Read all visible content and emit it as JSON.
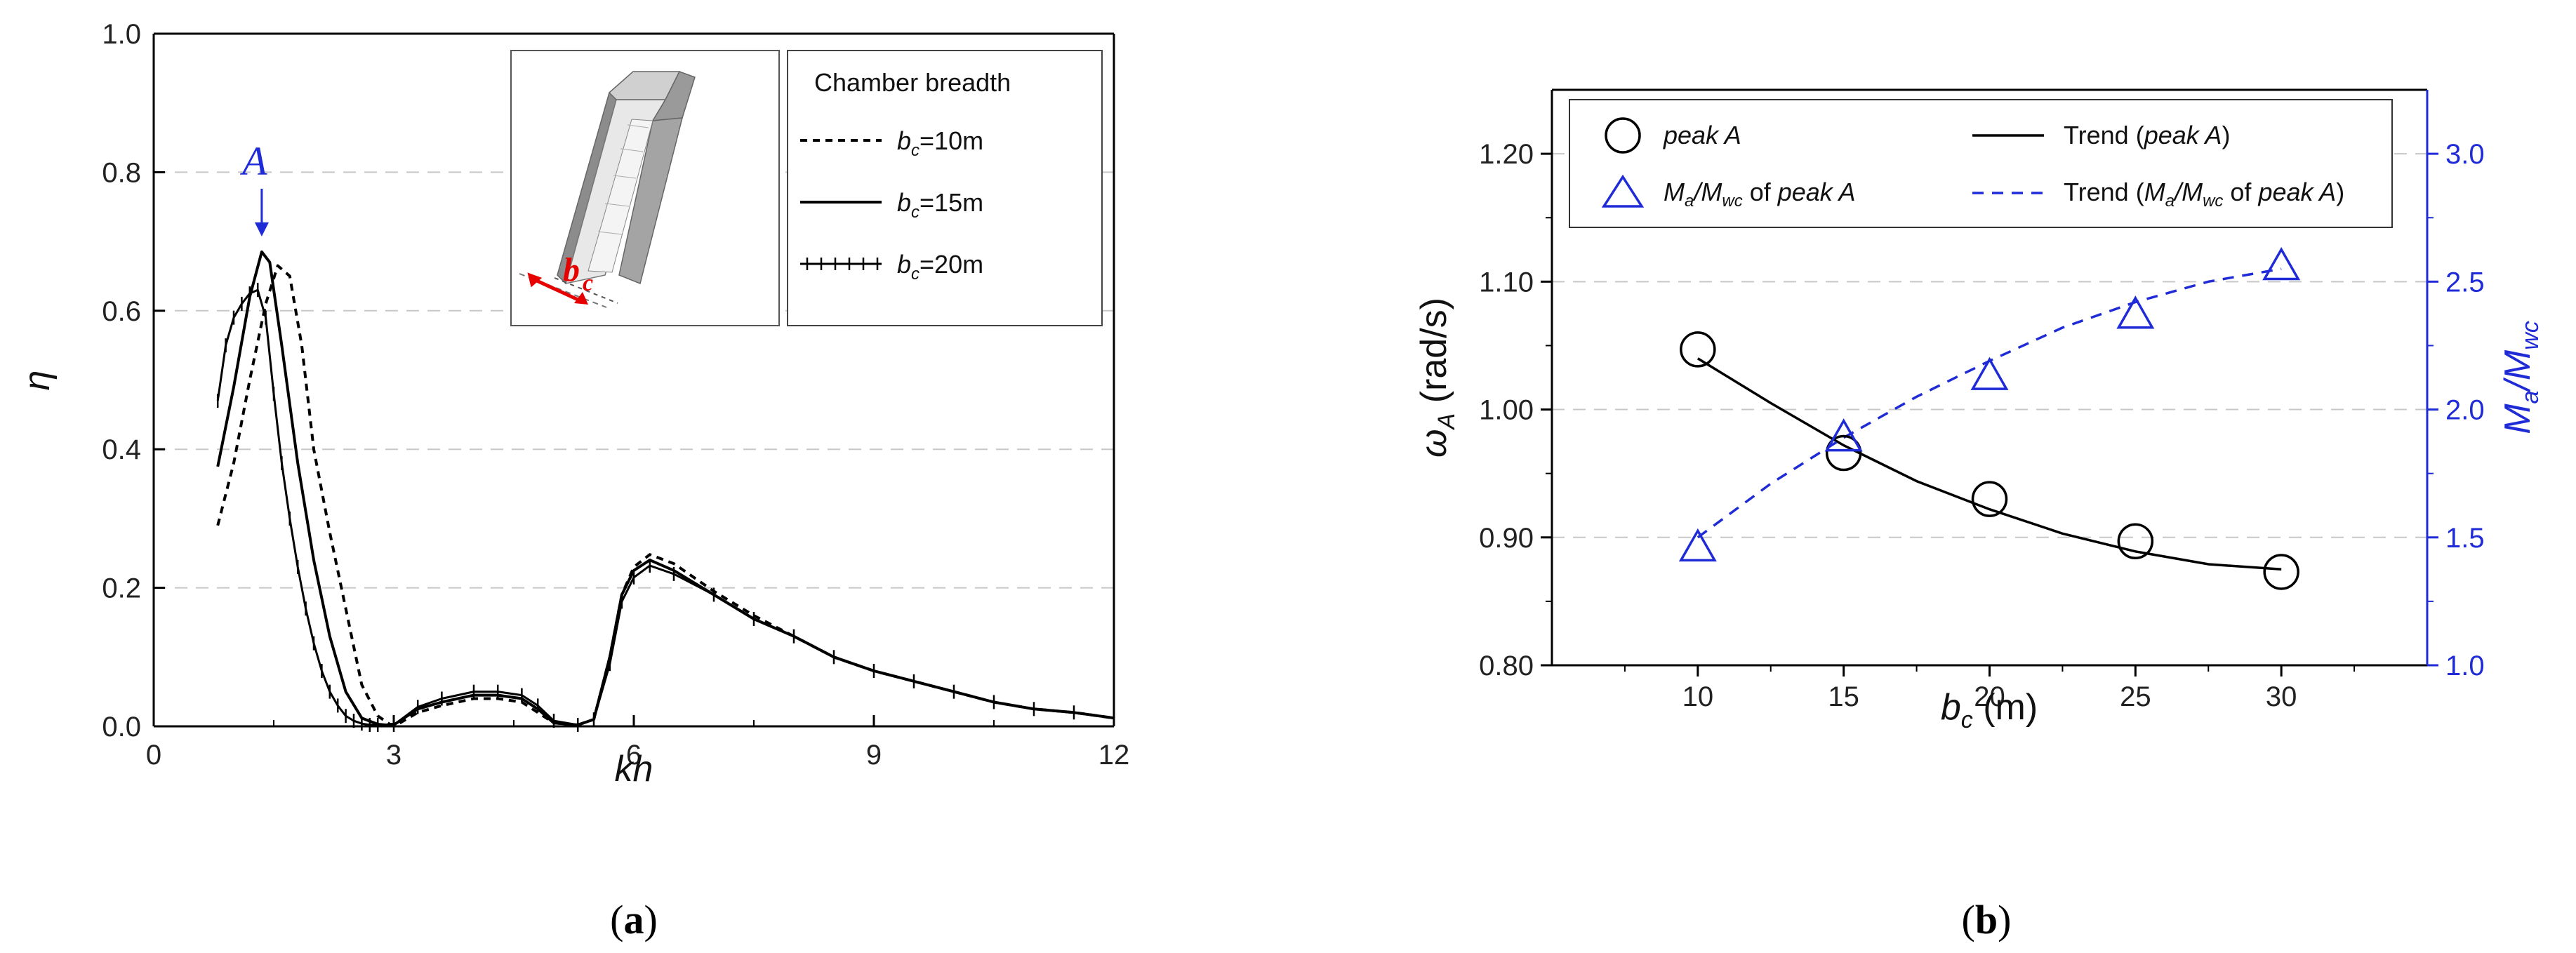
{
  "chart_data": [
    {
      "type": "line",
      "panel_label": "a",
      "xlabel": "kh",
      "ylabel": "η",
      "xlim": [
        0,
        12
      ],
      "ylim": [
        0,
        1.0
      ],
      "xticks": [
        "0",
        "3",
        "6",
        "9",
        "12"
      ],
      "yticks": [
        "0.0",
        "0.2",
        "0.4",
        "0.6",
        "0.8",
        "1.0"
      ],
      "annotation": "A",
      "legend_title": "Chamber breadth",
      "series": [
        {
          "name": "b_c=10m",
          "name_base": "b",
          "name_sub": "c",
          "name_rest": "=10m",
          "style": "dashed",
          "x": [
            0.8,
            1.0,
            1.2,
            1.4,
            1.55,
            1.7,
            1.85,
            2.0,
            2.2,
            2.4,
            2.6,
            2.8,
            2.95,
            3.05,
            3.3,
            3.6,
            4.0,
            4.3,
            4.6,
            4.8,
            5.0,
            5.3,
            5.5,
            5.7,
            5.85,
            6.0,
            6.2,
            6.5,
            7.0,
            7.5,
            8.0,
            8.5,
            9.0,
            9.5,
            10.0,
            10.5,
            11.0,
            11.5,
            12.0
          ],
          "y": [
            0.29,
            0.38,
            0.5,
            0.61,
            0.665,
            0.65,
            0.55,
            0.4,
            0.28,
            0.17,
            0.06,
            0.015,
            0.003,
            0.003,
            0.02,
            0.03,
            0.04,
            0.04,
            0.035,
            0.02,
            0.005,
            0.002,
            0.01,
            0.1,
            0.19,
            0.23,
            0.248,
            0.235,
            0.195,
            0.16,
            0.13,
            0.1,
            0.08,
            0.065,
            0.05,
            0.035,
            0.025,
            0.02,
            0.012
          ]
        },
        {
          "name": "b_c=15m",
          "name_base": "b",
          "name_sub": "c",
          "name_rest": "=15m",
          "style": "solid",
          "x": [
            0.8,
            1.0,
            1.2,
            1.35,
            1.45,
            1.6,
            1.8,
            2.0,
            2.2,
            2.4,
            2.6,
            2.8,
            2.9,
            3.0,
            3.3,
            3.6,
            4.0,
            4.3,
            4.6,
            4.8,
            5.0,
            5.3,
            5.5,
            5.7,
            5.85,
            6.0,
            6.2,
            6.5,
            7.0,
            7.5,
            8.0,
            8.5,
            9.0,
            9.5,
            10.0,
            10.5,
            11.0,
            11.5,
            12.0
          ],
          "y": [
            0.375,
            0.49,
            0.62,
            0.685,
            0.67,
            0.55,
            0.38,
            0.24,
            0.13,
            0.05,
            0.012,
            0.003,
            0.002,
            0.002,
            0.025,
            0.035,
            0.045,
            0.045,
            0.04,
            0.025,
            0.005,
            0.002,
            0.01,
            0.1,
            0.19,
            0.225,
            0.24,
            0.225,
            0.19,
            0.155,
            0.13,
            0.1,
            0.08,
            0.065,
            0.05,
            0.035,
            0.025,
            0.02,
            0.012
          ]
        },
        {
          "name": "b_c=20m",
          "name_base": "b",
          "name_sub": "c",
          "name_rest": "=20m",
          "style": "marked",
          "x": [
            0.8,
            0.9,
            1.0,
            1.1,
            1.2,
            1.3,
            1.4,
            1.5,
            1.6,
            1.7,
            1.8,
            1.9,
            2.0,
            2.1,
            2.2,
            2.3,
            2.4,
            2.5,
            2.6,
            2.7,
            2.8,
            3.0,
            3.3,
            3.6,
            4.0,
            4.3,
            4.6,
            4.8,
            5.0,
            5.3,
            5.5,
            5.7,
            5.85,
            6.0,
            6.2,
            6.5,
            7.0,
            7.5,
            8.0,
            8.5,
            9.0,
            9.5,
            10.0,
            10.5,
            11.0,
            11.5,
            12.0
          ],
          "y": [
            0.47,
            0.55,
            0.59,
            0.61,
            0.625,
            0.63,
            0.59,
            0.48,
            0.38,
            0.3,
            0.23,
            0.17,
            0.12,
            0.08,
            0.05,
            0.03,
            0.015,
            0.008,
            0.004,
            0.002,
            0.002,
            0.002,
            0.028,
            0.04,
            0.05,
            0.05,
            0.045,
            0.03,
            0.008,
            0.002,
            0.01,
            0.09,
            0.18,
            0.215,
            0.232,
            0.22,
            0.19,
            0.155,
            0.13,
            0.1,
            0.08,
            0.065,
            0.05,
            0.035,
            0.025,
            0.02,
            0.012
          ]
        }
      ]
    },
    {
      "type": "scatter",
      "panel_label": "b",
      "xlabel": "b_c (m)",
      "xlabel_base": "b",
      "xlabel_sub": "c",
      "xlabel_rest": " (m)",
      "ylabel_left": "ω_A (rad/s)",
      "ylabel_left_base": "ω",
      "ylabel_left_sub": "A",
      "ylabel_left_rest": " (rad/s)",
      "ylabel_right": "M_a/M_wc",
      "ylabel_right_parts": [
        "M",
        "a",
        "/M",
        "wc"
      ],
      "xlim": [
        5,
        35
      ],
      "ylim_left": [
        0.8,
        1.25
      ],
      "ylim_right": [
        1.0,
        3.25
      ],
      "xticks": [
        "10",
        "15",
        "20",
        "25",
        "30"
      ],
      "yticks_left": [
        "0.80",
        "0.90",
        "1.00",
        "1.10",
        "1.20"
      ],
      "yticks_right": [
        "1.0",
        "1.5",
        "2.0",
        "2.5",
        "3.0"
      ],
      "series": [
        {
          "name": "peak A",
          "axis": "left",
          "marker": "circle",
          "color": "#000000",
          "x": [
            10,
            15,
            20,
            25,
            30
          ],
          "y": [
            1.047,
            0.966,
            0.93,
            0.897,
            0.873
          ]
        },
        {
          "name": "Trend (peak A)",
          "axis": "left",
          "style": "solid-line",
          "color": "#000000",
          "x": [
            10,
            12.5,
            15,
            17.5,
            20,
            22.5,
            25,
            27.5,
            30
          ],
          "y": [
            1.04,
            1.005,
            0.972,
            0.944,
            0.922,
            0.903,
            0.889,
            0.879,
            0.875
          ]
        },
        {
          "name": "M_a/M_wc of peak A",
          "axis": "right",
          "marker": "triangle",
          "color": "#1f2bd6",
          "x": [
            10,
            15,
            20,
            25,
            30
          ],
          "y": [
            1.46,
            1.89,
            2.13,
            2.37,
            2.56
          ]
        },
        {
          "name": "Trend (M_a/M_wc of peak A)",
          "axis": "right",
          "style": "dashed-line",
          "color": "#1f2bd6",
          "x": [
            10,
            12.5,
            15,
            17.5,
            20,
            22.5,
            25,
            27.5,
            30
          ],
          "y": [
            1.5,
            1.71,
            1.89,
            2.05,
            2.19,
            2.32,
            2.42,
            2.5,
            2.55
          ]
        }
      ],
      "legend": {
        "peak_a": "peak A",
        "trend_peak_a_pre": "Trend (",
        "trend_peak_a_it": "peak A",
        "trend_peak_a_post": ")",
        "ratio_of": " of ",
        "ratio_peak": "peak A",
        "trend_ratio_pre": "Trend (",
        "trend_ratio_post": ")"
      }
    }
  ]
}
